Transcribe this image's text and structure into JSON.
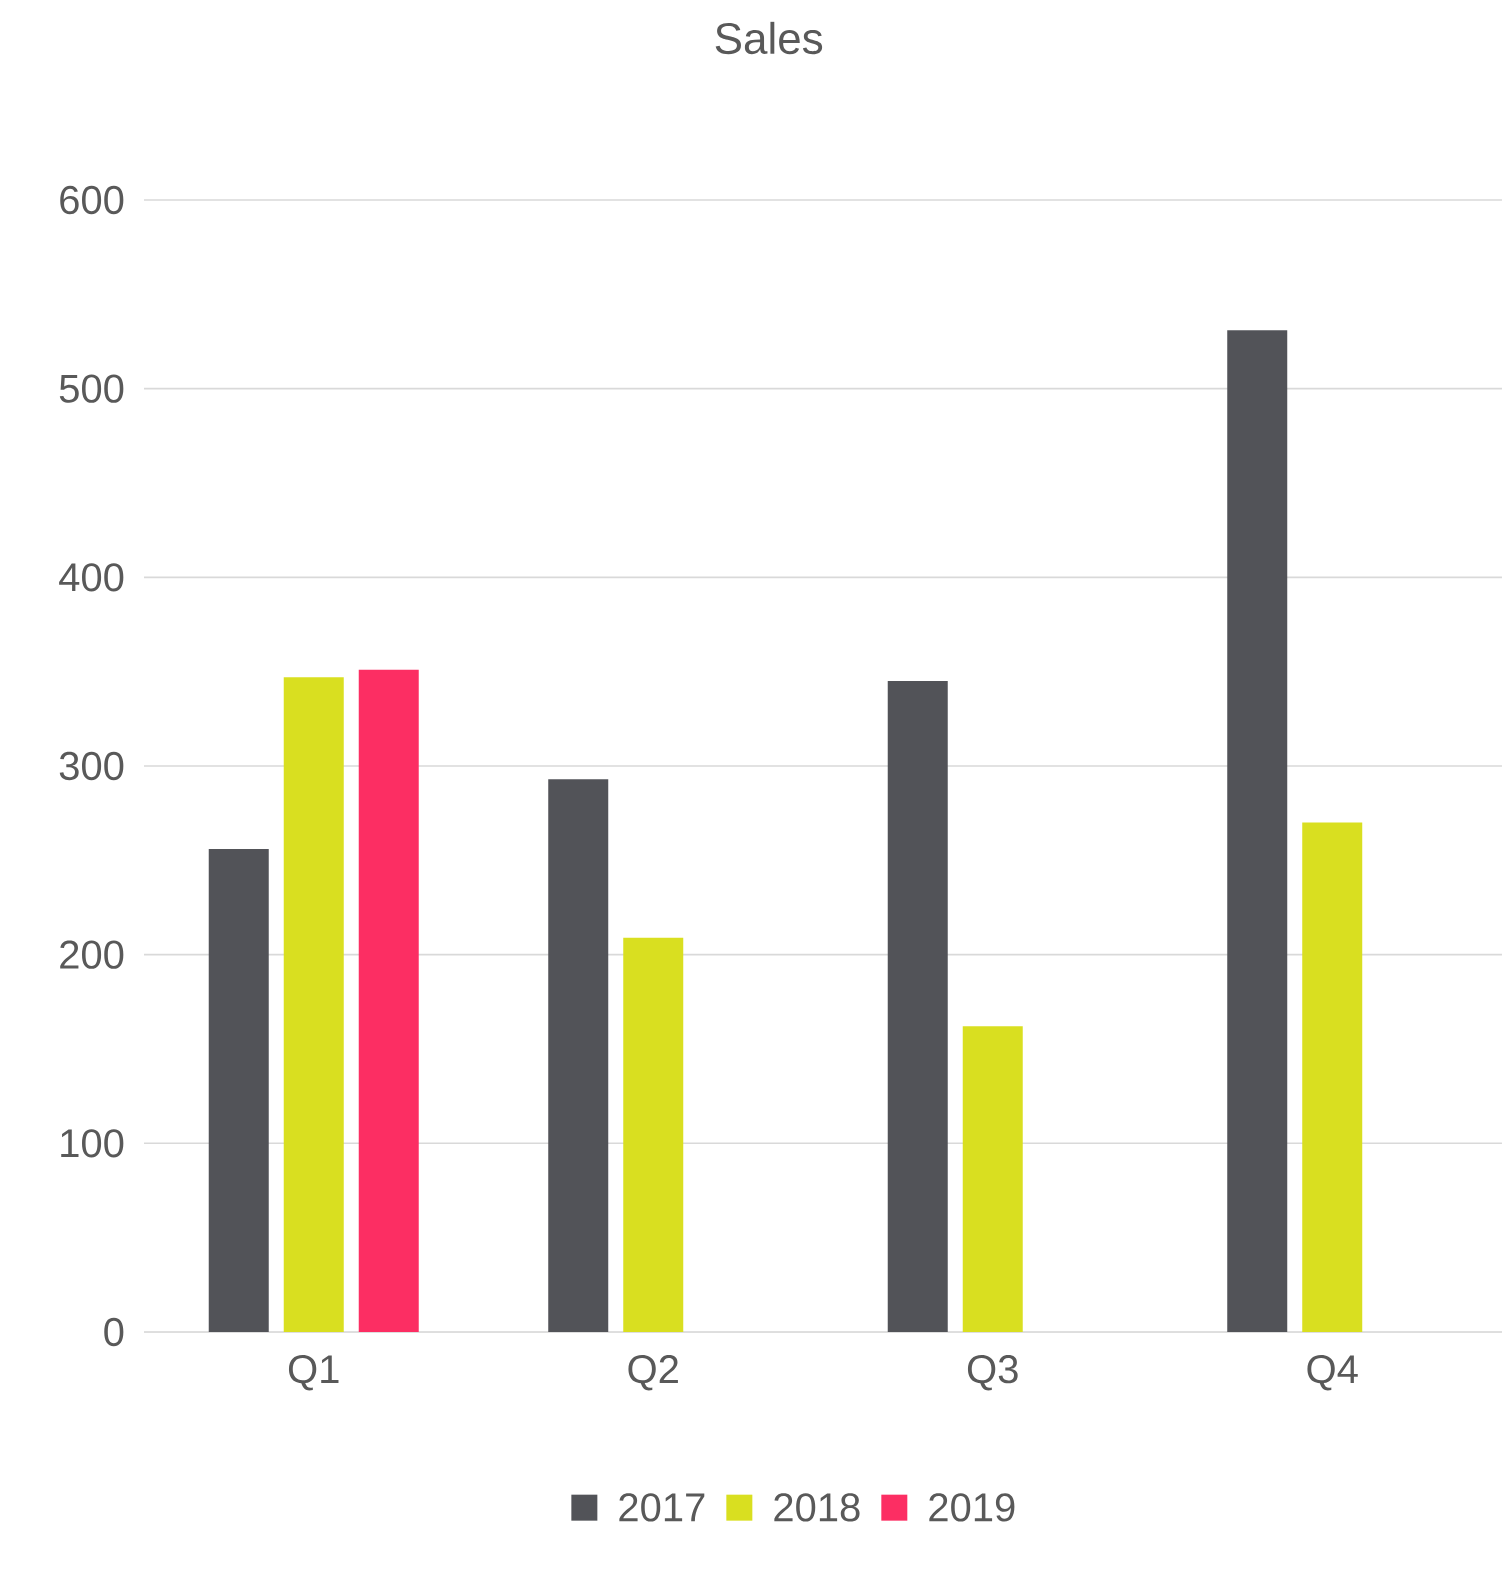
{
  "chart_data": {
    "type": "bar",
    "title": "Sales",
    "categories": [
      "Q1",
      "Q2",
      "Q3",
      "Q4"
    ],
    "series": [
      {
        "name": "2017",
        "color": "#525358",
        "values": [
          256,
          293,
          345,
          531
        ]
      },
      {
        "name": "2018",
        "color": "#d9df20",
        "values": [
          347,
          209,
          162,
          270
        ]
      },
      {
        "name": "2019",
        "color": "#fc2e63",
        "values": [
          351,
          null,
          null,
          null
        ]
      }
    ],
    "ylim": [
      0,
      600
    ],
    "yticks": [
      0,
      100,
      200,
      300,
      400,
      500,
      600
    ],
    "grid": "y",
    "legend": "bottom"
  }
}
